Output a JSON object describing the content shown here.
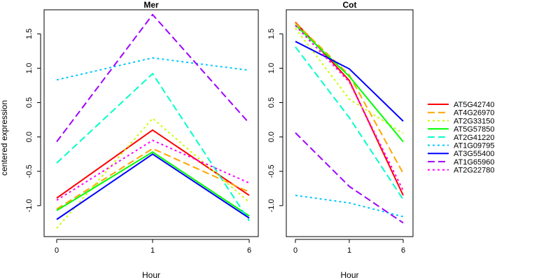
{
  "chart_data": {
    "type": "line",
    "ylabel": "centered expression",
    "xlabel": "Hour",
    "x_tick_labels": [
      "0",
      "1",
      "6"
    ],
    "y_ticks": [
      -1.0,
      -0.5,
      0.0,
      0.5,
      1.0,
      1.5
    ],
    "y_tick_labels": [
      "-1.0",
      "-0.5",
      "0.0",
      "0.5",
      "1.0",
      "1.5"
    ],
    "ylim": [
      -1.45,
      1.85
    ],
    "legend_position": "right",
    "series_styles": [
      {
        "name": "AT5G42740",
        "color": "#ff0000",
        "dash": "solid"
      },
      {
        "name": "AT4G26970",
        "color": "#ffa500",
        "dash": "dashed"
      },
      {
        "name": "AT2G33150",
        "color": "#c8ff00",
        "dash": "dotted"
      },
      {
        "name": "AT5G57850",
        "color": "#00ff00",
        "dash": "solid"
      },
      {
        "name": "AT2G41220",
        "color": "#00ffc8",
        "dash": "dashed"
      },
      {
        "name": "AT1G09795",
        "color": "#00c8ff",
        "dash": "dotted"
      },
      {
        "name": "AT3G55400",
        "color": "#0000ff",
        "dash": "solid"
      },
      {
        "name": "AT1G65960",
        "color": "#a000ff",
        "dash": "dashed"
      },
      {
        "name": "AT2G22780",
        "color": "#ff00ff",
        "dash": "dotted"
      }
    ],
    "panels": [
      {
        "title": "Mer",
        "x": [
          0,
          1,
          6
        ],
        "series": [
          {
            "name": "AT5G42740",
            "values": [
              -0.89,
              0.1,
              -0.85
            ]
          },
          {
            "name": "AT4G26970",
            "values": [
              -1.05,
              -0.17,
              -0.8
            ]
          },
          {
            "name": "AT2G33150",
            "values": [
              -1.33,
              0.27,
              -0.95
            ]
          },
          {
            "name": "AT5G57850",
            "values": [
              -1.07,
              -0.22,
              -1.15
            ]
          },
          {
            "name": "AT2G41220",
            "values": [
              -0.38,
              0.92,
              -1.22
            ]
          },
          {
            "name": "AT1G09795",
            "values": [
              0.83,
              1.15,
              0.97
            ]
          },
          {
            "name": "AT3G55400",
            "values": [
              -1.2,
              -0.25,
              -1.18
            ]
          },
          {
            "name": "AT1G65960",
            "values": [
              -0.07,
              1.78,
              0.2
            ]
          },
          {
            "name": "AT2G22780",
            "values": [
              -0.92,
              -0.05,
              -0.67
            ]
          }
        ]
      },
      {
        "title": "Cot",
        "x": [
          0,
          1,
          6
        ],
        "series": [
          {
            "name": "AT5G42740",
            "values": [
              1.67,
              0.82,
              -0.85
            ]
          },
          {
            "name": "AT4G26970",
            "values": [
              1.66,
              0.9,
              -0.53
            ]
          },
          {
            "name": "AT2G33150",
            "values": [
              1.58,
              0.55,
              0.05
            ]
          },
          {
            "name": "AT5G57850",
            "values": [
              1.63,
              0.88,
              -0.07
            ]
          },
          {
            "name": "AT2G41220",
            "values": [
              1.31,
              0.28,
              -0.91
            ]
          },
          {
            "name": "AT1G09795",
            "values": [
              -0.85,
              -0.96,
              -1.16
            ]
          },
          {
            "name": "AT3G55400",
            "values": [
              1.39,
              0.99,
              0.23
            ]
          },
          {
            "name": "AT1G65960",
            "values": [
              0.06,
              -0.72,
              -1.25
            ]
          },
          {
            "name": "AT2G22780",
            "values": [
              1.62,
              0.8,
              -0.78
            ]
          }
        ]
      }
    ]
  }
}
